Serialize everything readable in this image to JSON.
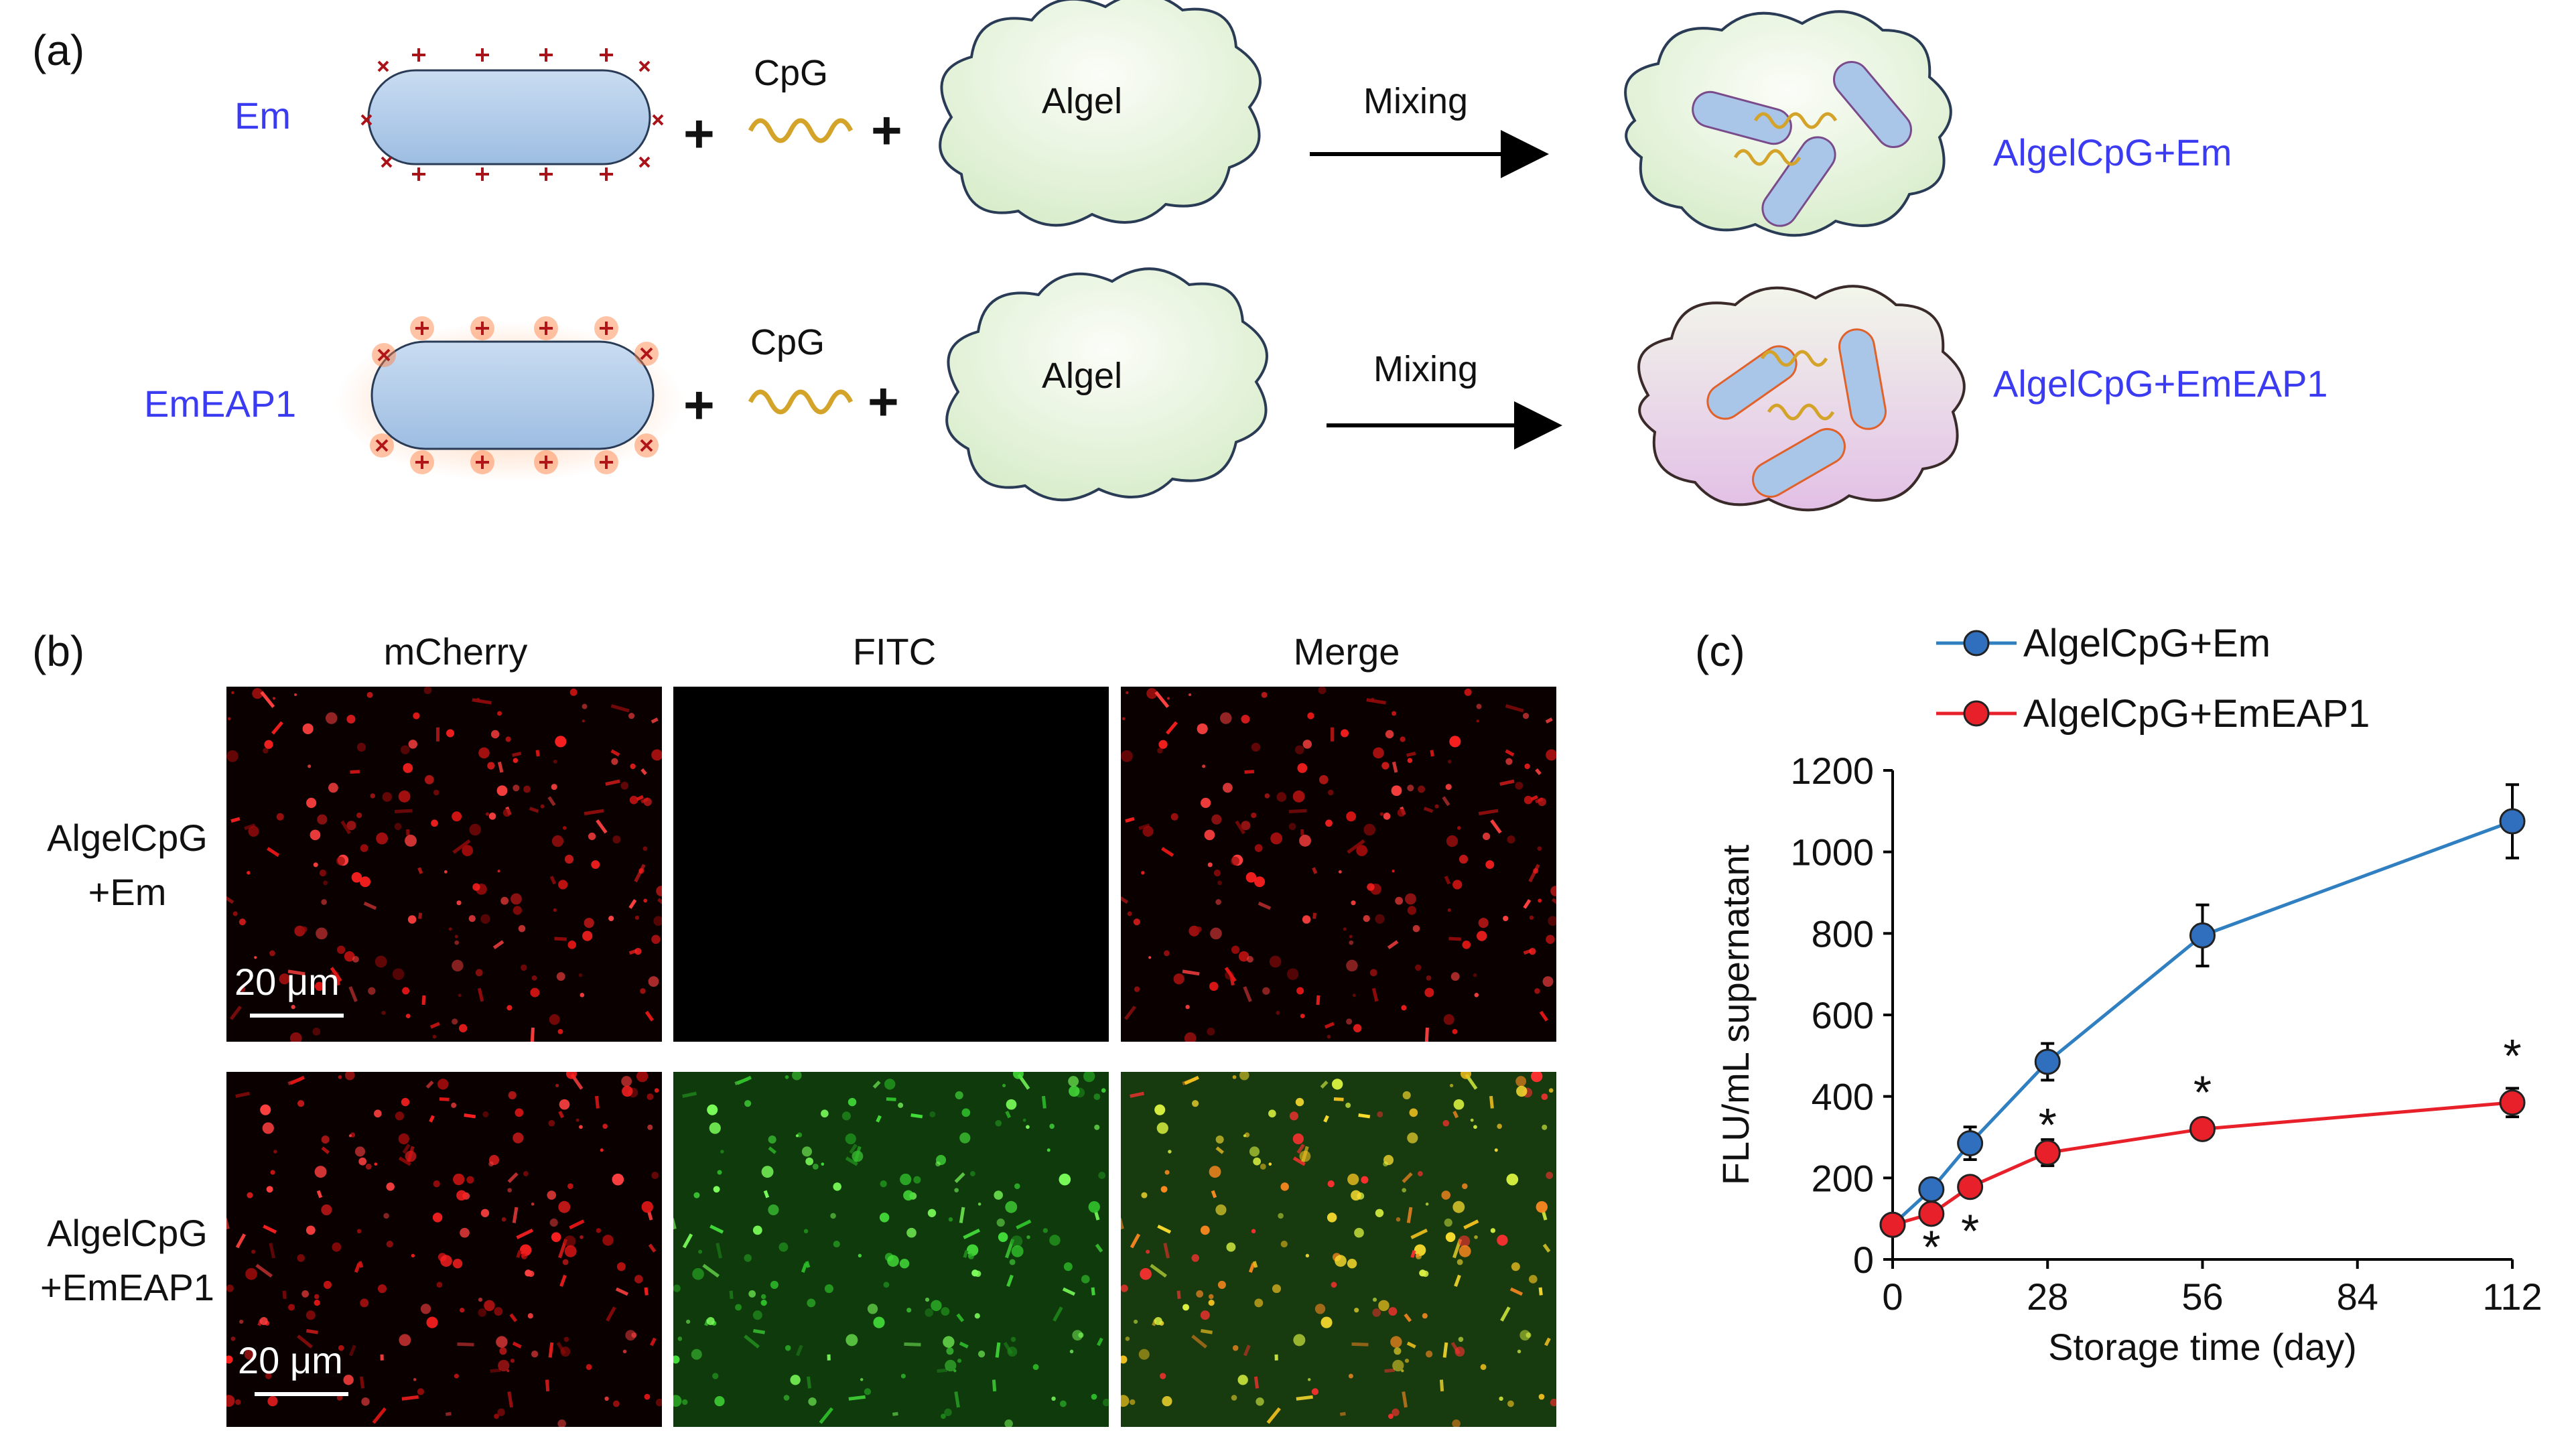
{
  "panel_a": {
    "label": "(a)",
    "rows": [
      {
        "name_label": "Em",
        "cpg_label": "CpG",
        "algel_label": "Algel",
        "mixing_label": "Mixing",
        "result_label": "AlgelCpG+Em",
        "glow": false
      },
      {
        "name_label": "EmEAP1",
        "cpg_label": "CpG",
        "algel_label": "Algel",
        "mixing_label": "Mixing",
        "result_label": "AlgelCpG+EmEAP1",
        "glow": true
      }
    ],
    "plus": "+",
    "colors": {
      "cell_fill": "#b8d0ec",
      "cloud_fill": "#eaf5e2",
      "cloud_pink": "#efd9ef",
      "label": "#3b3bf2",
      "protein": "#b0151a"
    }
  },
  "panel_b": {
    "label": "(b)",
    "columns": [
      "mCherry",
      "FITC",
      "Merge"
    ],
    "rows": [
      {
        "label_line1": "AlgelCpG",
        "label_line2": "+Em"
      },
      {
        "label_line1": "AlgelCpG",
        "label_line2": "+EmEAP1"
      }
    ],
    "scale_bar": "20 μm"
  },
  "panel_c": {
    "label": "(c)",
    "chart_data": {
      "type": "line",
      "xlabel": "Storage time (day)",
      "ylabel": "FLU/mL supernatant",
      "xlim": [
        0,
        112
      ],
      "ylim": [
        0,
        1200
      ],
      "xticks": [
        0,
        28,
        56,
        84,
        112
      ],
      "yticks": [
        0,
        200,
        400,
        600,
        800,
        1000,
        1200
      ],
      "legend_position": "top",
      "series": [
        {
          "name": "AlgelCpG+Em",
          "color": "#2f7fc1",
          "marker": "#2f6fbe",
          "x": [
            0,
            7,
            14,
            28,
            56,
            112
          ],
          "y": [
            85,
            172,
            285,
            485,
            795,
            1075
          ],
          "err": [
            10,
            12,
            40,
            45,
            75,
            90
          ]
        },
        {
          "name": "AlgelCpG+EmEAP1",
          "color": "#e8202a",
          "marker": "#e8202a",
          "x": [
            0,
            7,
            14,
            28,
            56,
            112
          ],
          "y": [
            85,
            112,
            178,
            262,
            320,
            385
          ],
          "err": [
            8,
            10,
            18,
            32,
            12,
            35
          ]
        }
      ],
      "annotations": [
        {
          "text": "*",
          "x": 7,
          "y": 40
        },
        {
          "text": "*",
          "x": 14,
          "y": 80
        },
        {
          "text": "*",
          "x": 28,
          "y": 340
        },
        {
          "text": "*",
          "x": 56,
          "y": 420
        },
        {
          "text": "*",
          "x": 112,
          "y": 510
        }
      ]
    }
  }
}
